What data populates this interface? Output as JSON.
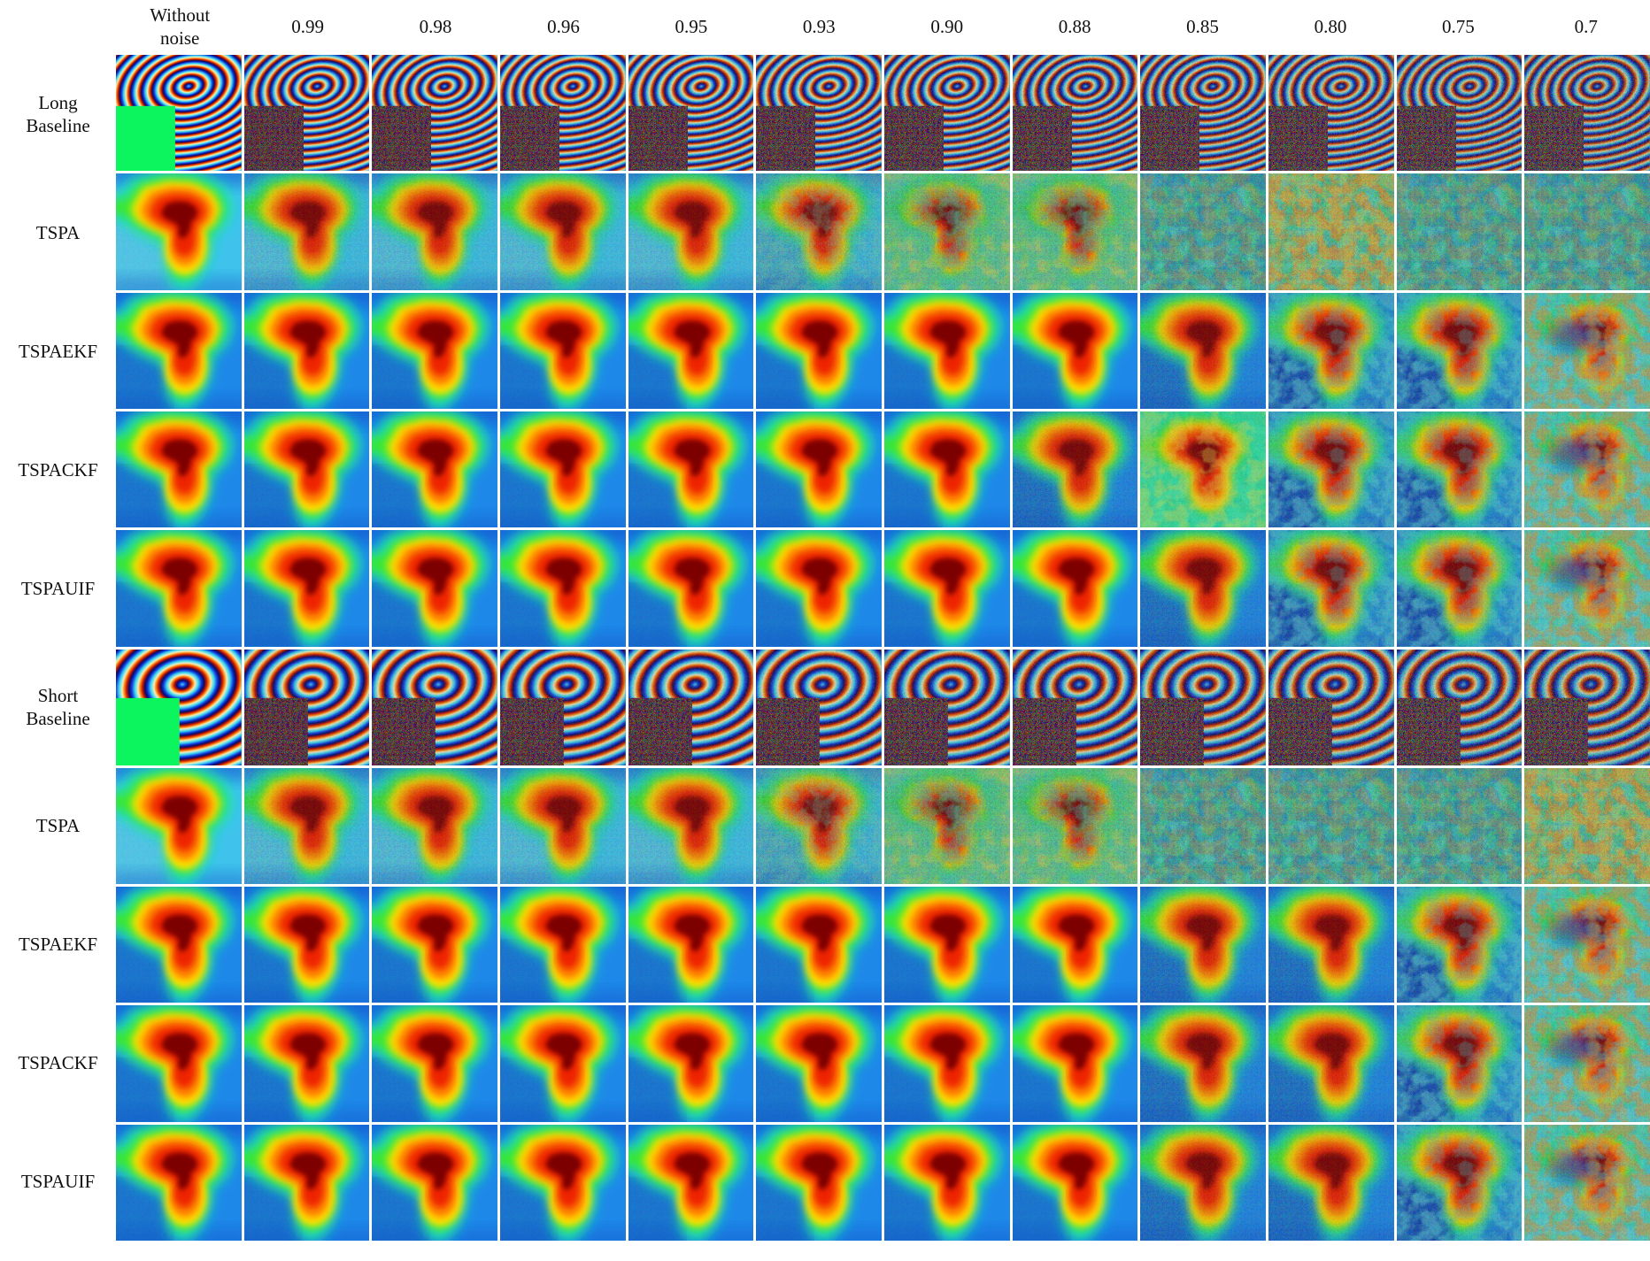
{
  "figure": {
    "columns": [
      "Without\nnoise",
      "0.99",
      "0.98",
      "0.96",
      "0.95",
      "0.93",
      "0.90",
      "0.88",
      "0.85",
      "0.80",
      "0.75",
      "0.7"
    ],
    "rows": [
      {
        "label": "Long\nBaseline",
        "type": "fringe",
        "baseline": "long",
        "variant": "none",
        "levels": [
          0,
          1,
          1,
          1,
          1,
          1,
          1,
          1,
          1,
          1,
          1,
          1
        ]
      },
      {
        "label": "TSPA",
        "type": "blob",
        "baseline": "long",
        "variant": "tspa",
        "levels": [
          0,
          1,
          1,
          1,
          1,
          2,
          3,
          3,
          5,
          4,
          5,
          5
        ]
      },
      {
        "label": "TSPAEKF",
        "type": "blob",
        "baseline": "long",
        "variant": "filter",
        "levels": [
          0,
          0,
          0,
          0,
          0,
          0,
          0,
          0,
          1,
          2,
          2,
          3
        ]
      },
      {
        "label": "TSPACKF",
        "type": "blob",
        "baseline": "long",
        "variant": "filter",
        "levels": [
          0,
          0,
          0,
          0,
          0,
          0,
          0,
          1,
          6,
          2,
          2,
          3
        ]
      },
      {
        "label": "TSPAUIF",
        "type": "blob",
        "baseline": "long",
        "variant": "filter",
        "levels": [
          0,
          0,
          0,
          0,
          0,
          0,
          0,
          0,
          1,
          2,
          2,
          3
        ]
      },
      {
        "label": "Short\nBaseline",
        "type": "fringe",
        "baseline": "short",
        "variant": "none",
        "levels": [
          0,
          1,
          1,
          1,
          1,
          1,
          1,
          1,
          1,
          1,
          1,
          1
        ]
      },
      {
        "label": "TSPA",
        "type": "blob",
        "baseline": "short",
        "variant": "tspa",
        "levels": [
          0,
          1,
          1,
          1,
          1,
          2,
          3,
          3,
          5,
          5,
          5,
          4
        ]
      },
      {
        "label": "TSPAEKF",
        "type": "blob",
        "baseline": "short",
        "variant": "filter",
        "levels": [
          0,
          0,
          0,
          0,
          0,
          0,
          0,
          0,
          1,
          1,
          2,
          3
        ]
      },
      {
        "label": "TSPACKF",
        "type": "blob",
        "baseline": "short",
        "variant": "filter",
        "levels": [
          0,
          0,
          0,
          0,
          0,
          0,
          0,
          0,
          1,
          1,
          2,
          3
        ]
      },
      {
        "label": "TSPAUIF",
        "type": "blob",
        "baseline": "short",
        "variant": "filter",
        "levels": [
          0,
          0,
          0,
          0,
          0,
          0,
          0,
          0,
          1,
          1,
          2,
          3
        ]
      }
    ],
    "palette": {
      "green_square": "#0cf45e",
      "noisy_square": "#5c0c22",
      "fringe_stops": [
        "#38d8f0",
        "#1038e0",
        "#0a0a60",
        "#c81400",
        "#ff9014",
        "#f2ecc2"
      ],
      "jet": [
        "#18e0d8",
        "#3ce81e",
        "#ffe600",
        "#ff8a00",
        "#ee2000",
        "#7d0000"
      ],
      "blob_bg": "#1e88e8",
      "blob_square": "#1777d6",
      "tspa_bg": "#3fc3ec",
      "tspa_square": "#52ccee",
      "dark_top": "#0a4cc8",
      "mottle_cyan": "#68eade",
      "mottle_pale": "#7ceee0",
      "mottle_green": "#46e082",
      "mottle_orange": "#ff9420",
      "mottle_yellow": "#f0e04c",
      "mottle_blue": "#1e6cd0",
      "bg_teal": "#2cc4b4",
      "bg_sage": "#66d89c",
      "bg_mint": "#3ee8a8",
      "bg_warm": "#48c8a0",
      "bg_cool": "#49ccd8",
      "patch_navy": "#0c48c8",
      "square_noise_blue": "#0a3cae",
      "level2_bg": "#2391dc",
      "level2_square": "#1353c4"
    }
  }
}
